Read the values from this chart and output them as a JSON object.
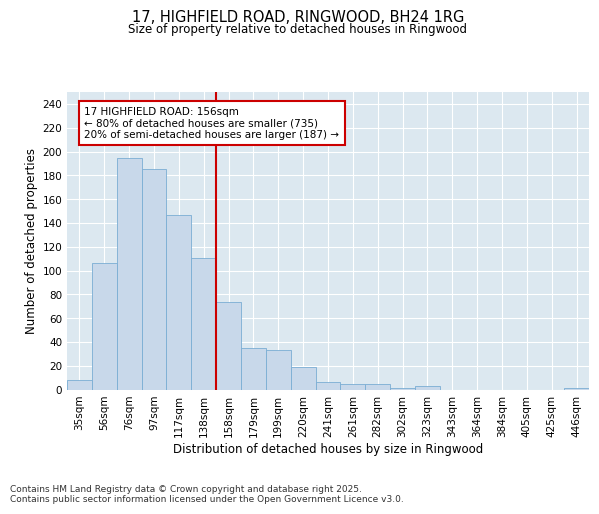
{
  "title_line1": "17, HIGHFIELD ROAD, RINGWOOD, BH24 1RG",
  "title_line2": "Size of property relative to detached houses in Ringwood",
  "xlabel": "Distribution of detached houses by size in Ringwood",
  "ylabel": "Number of detached properties",
  "categories": [
    "35sqm",
    "56sqm",
    "76sqm",
    "97sqm",
    "117sqm",
    "138sqm",
    "158sqm",
    "179sqm",
    "199sqm",
    "220sqm",
    "241sqm",
    "261sqm",
    "282sqm",
    "302sqm",
    "323sqm",
    "343sqm",
    "364sqm",
    "384sqm",
    "405sqm",
    "425sqm",
    "446sqm"
  ],
  "values": [
    8,
    106,
    195,
    185,
    147,
    111,
    74,
    35,
    33,
    19,
    6,
    5,
    5,
    1,
    3,
    0,
    0,
    0,
    0,
    0,
    1
  ],
  "bar_color": "#c8d8ea",
  "bar_edge_color": "#7aadd4",
  "highlight_line_color": "#cc0000",
  "annotation_line1": "17 HIGHFIELD ROAD: 156sqm",
  "annotation_line2": "← 80% of detached houses are smaller (735)",
  "annotation_line3": "20% of semi-detached houses are larger (187) →",
  "annotation_box_edgecolor": "#cc0000",
  "ylim_min": 0,
  "ylim_max": 250,
  "yticks": [
    0,
    20,
    40,
    60,
    80,
    100,
    120,
    140,
    160,
    180,
    200,
    220,
    240
  ],
  "plot_bg_color": "#dce8f0",
  "footer_text": "Contains HM Land Registry data © Crown copyright and database right 2025.\nContains public sector information licensed under the Open Government Licence v3.0.",
  "title_fontsize": 10.5,
  "subtitle_fontsize": 8.5,
  "tick_fontsize": 7.5,
  "label_fontsize": 8.5,
  "annot_fontsize": 7.5,
  "footer_fontsize": 6.5
}
